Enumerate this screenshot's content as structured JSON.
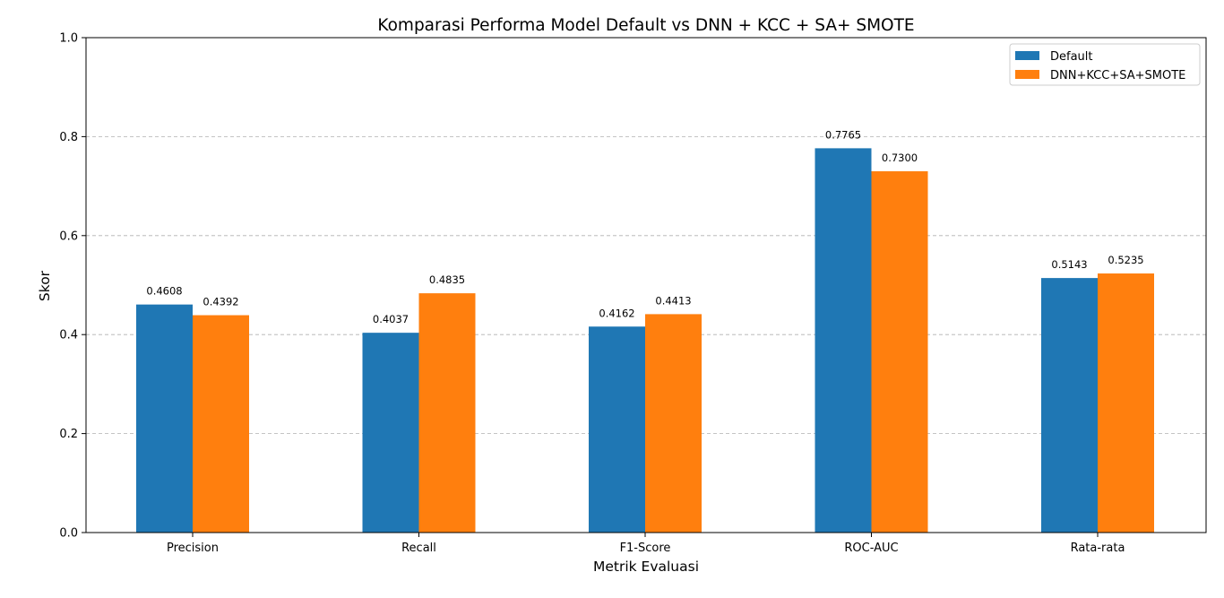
{
  "chart_data": {
    "type": "bar",
    "title": "Komparasi Performa Model Default vs DNN + KCC + SA+ SMOTE",
    "xlabel": "Metrik Evaluasi",
    "ylabel": "Skor",
    "ylim": [
      0,
      1.0
    ],
    "yticks": [
      "0.0",
      "0.2",
      "0.4",
      "0.6",
      "0.8",
      "1.0"
    ],
    "categories": [
      "Precision",
      "Recall",
      "F1-Score",
      "ROC-AUC",
      "Rata-rata"
    ],
    "series": [
      {
        "name": "Default",
        "color": "#1f77b4",
        "values": [
          0.4608,
          0.4037,
          0.4162,
          0.7765,
          0.5143
        ],
        "labels": [
          "0.4608",
          "0.4037",
          "0.4162",
          "0.7765",
          "0.5143"
        ]
      },
      {
        "name": "DNN+KCC+SA+SMOTE",
        "color": "#ff7f0e",
        "values": [
          0.4392,
          0.4835,
          0.4413,
          0.73,
          0.5235
        ],
        "labels": [
          "0.4392",
          "0.4835",
          "0.4413",
          "0.7300",
          "0.5235"
        ]
      }
    ],
    "grid": "y-dashed",
    "legend_position": "top-right"
  }
}
